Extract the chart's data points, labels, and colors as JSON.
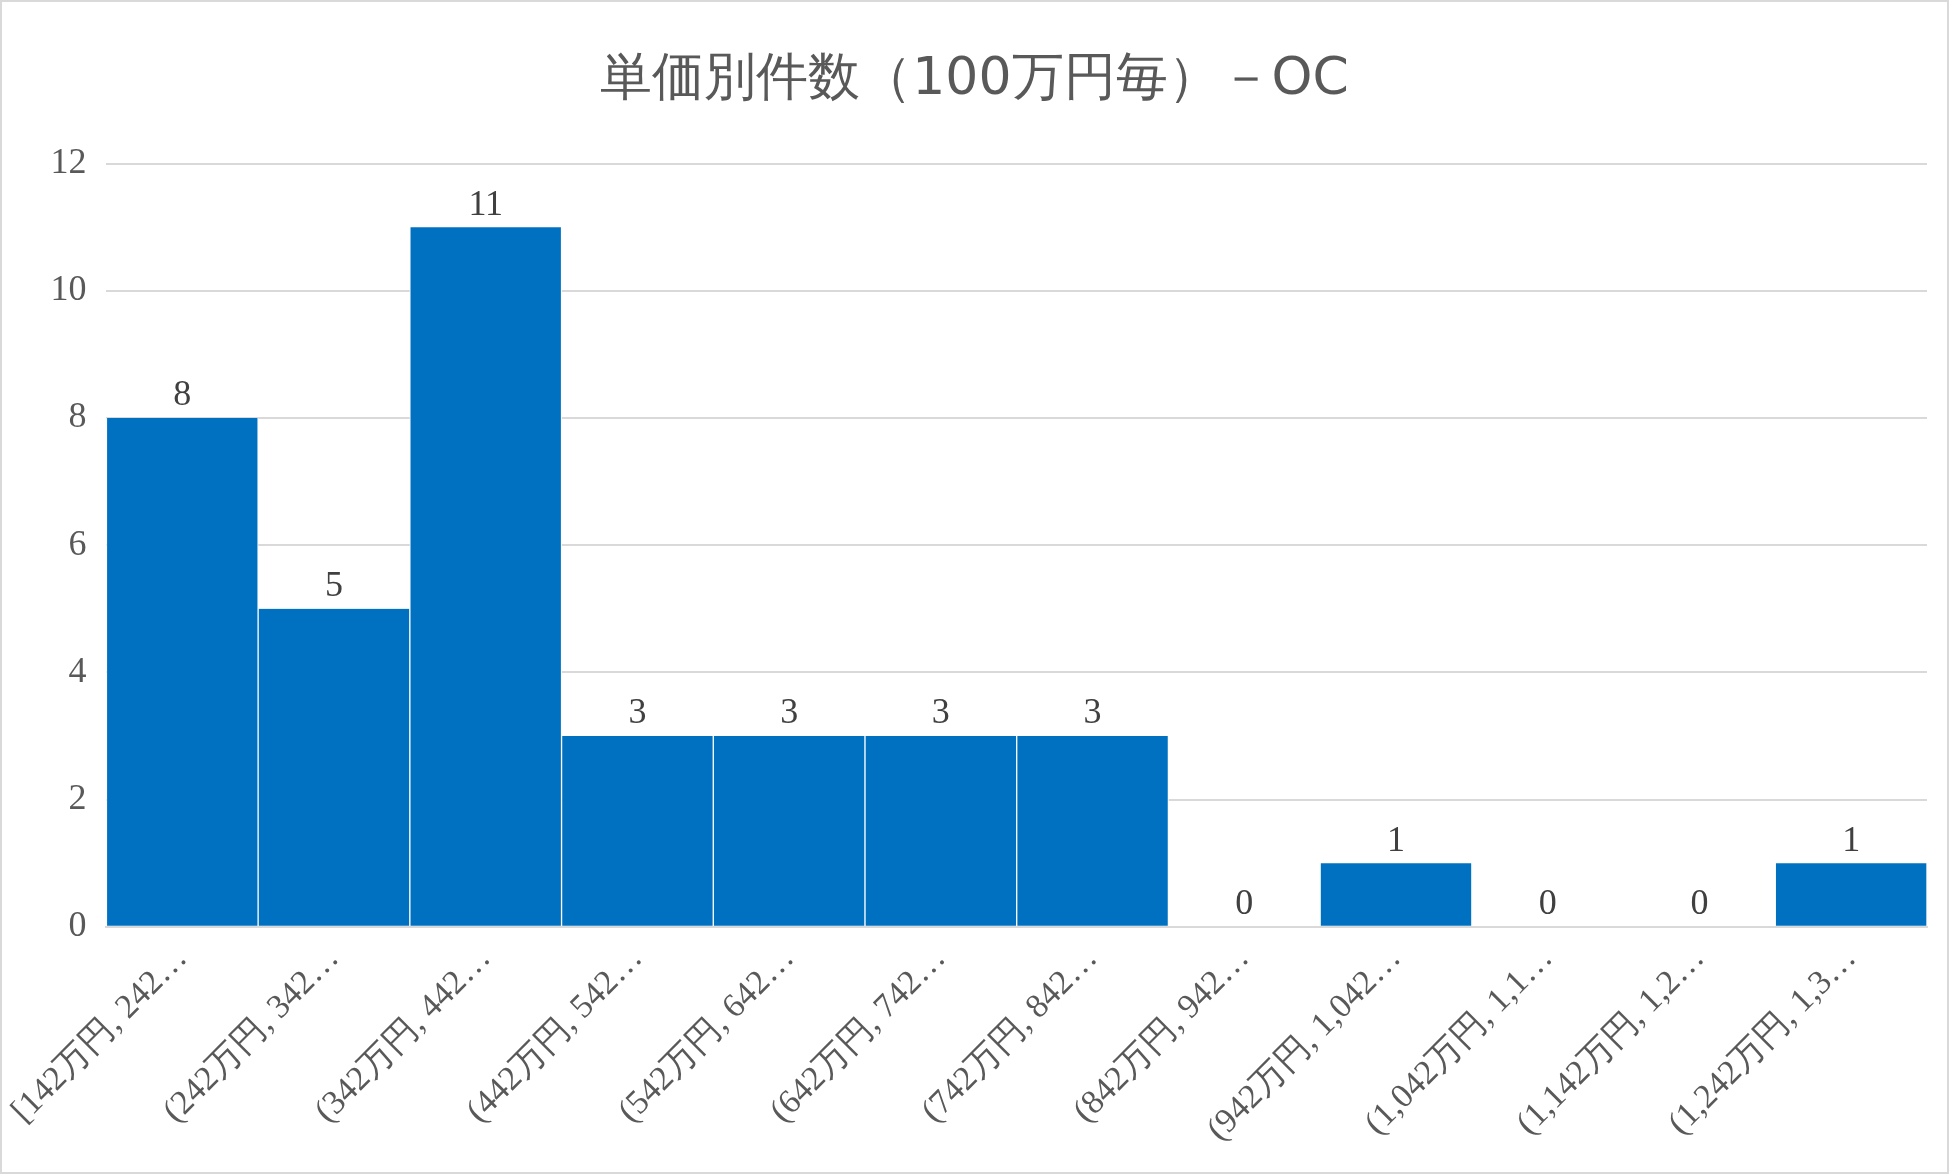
{
  "chart_data": {
    "type": "bar",
    "title": "単価別件数（100万円毎）－OC",
    "categories": [
      "[142万円, 242…",
      "(242万円, 342…",
      "(342万円, 442…",
      "(442万円, 542…",
      "(542万円, 642…",
      "(642万円, 742…",
      "(742万円, 842…",
      "(842万円, 942…",
      "(942万円, 1,042…",
      "(1,042万円, 1,1…",
      "(1,142万円, 1,2…",
      "(1,242万円, 1,3…"
    ],
    "values": [
      8,
      5,
      11,
      3,
      3,
      3,
      3,
      0,
      1,
      0,
      0,
      1
    ],
    "color": "#0070c0",
    "ylim": [
      0,
      12
    ],
    "yticks": [
      0,
      2,
      4,
      6,
      8,
      10,
      12
    ],
    "grid": "y",
    "data_labels": true,
    "legend": false
  }
}
